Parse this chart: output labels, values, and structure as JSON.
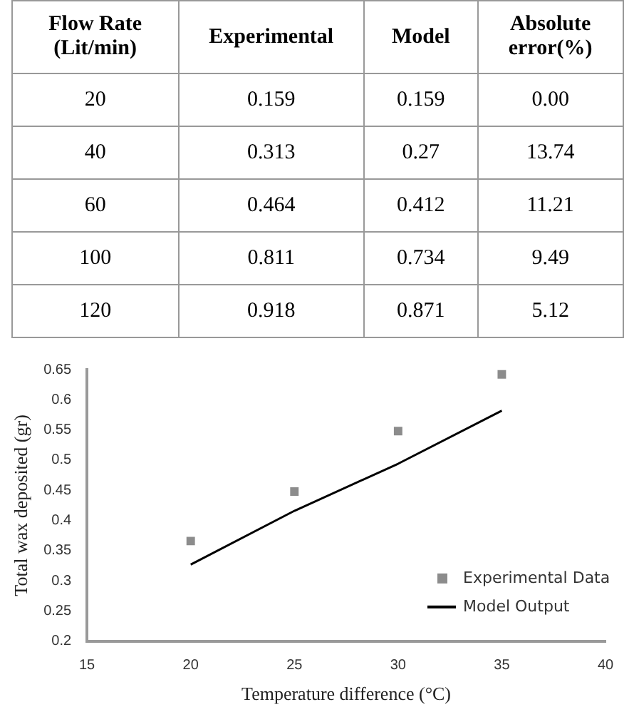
{
  "chart_data": [
    {
      "type": "other",
      "categories": [
        "Flow Rate (Lit/min)",
        "Experimental",
        "Model",
        "Absolute error(%)"
      ],
      "cell_labels": [
        [
          "20",
          "0.159",
          "0.159",
          "0.00"
        ],
        [
          "40",
          "0.313",
          "0.27",
          "13.74"
        ],
        [
          "60",
          "0.464",
          "0.412",
          "11.21"
        ],
        [
          "100",
          "0.811",
          "0.734",
          "9.49"
        ],
        [
          "120",
          "0.918",
          "0.871",
          "5.12"
        ]
      ]
    },
    {
      "type": "scatter",
      "xlabel": "Temperature difference (°C)",
      "ylabel": "Total wax deposited (gr)",
      "x": [
        20,
        25,
        30,
        35
      ],
      "series": [
        {
          "name": "Experimental Data",
          "color": "#8c8c8c",
          "marker": "square",
          "values": [
            0.366,
            0.448,
            0.548,
            0.642
          ]
        },
        {
          "name": "Model Output",
          "type": "line",
          "color": "#000000",
          "marker": "none",
          "values": [
            0.327,
            0.416,
            0.494,
            0.582
          ]
        }
      ],
      "xlim": [
        15,
        40
      ],
      "xticks": [
        15,
        20,
        25,
        30,
        35,
        40
      ],
      "ylim": [
        0.2,
        0.65
      ],
      "yticks": [
        0.2,
        0.25,
        0.3,
        0.35,
        0.4,
        0.45,
        0.5,
        0.55,
        0.6,
        0.65
      ],
      "grid": false,
      "legend": "bottom right",
      "line_style": "solid"
    }
  ]
}
